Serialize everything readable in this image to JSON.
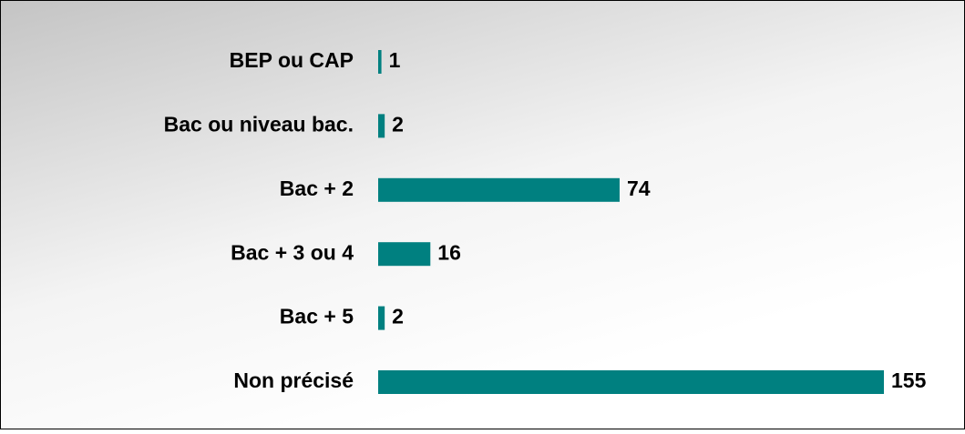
{
  "chart_data": {
    "type": "barh",
    "categories": [
      "BEP ou CAP",
      "Bac ou niveau bac.",
      "Bac + 2",
      "Bac + 3 ou 4",
      "Bac + 5",
      "Non précisé"
    ],
    "values": [
      1,
      2,
      74,
      16,
      2,
      155
    ],
    "color": "#008080"
  }
}
